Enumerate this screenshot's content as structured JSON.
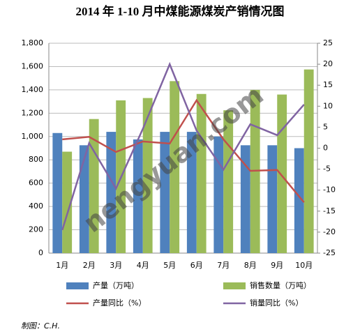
{
  "chart_data": {
    "type": "bar-line",
    "title": "2014 年 1-10 月中煤能源煤炭产销情况图",
    "categories": [
      "1月",
      "2月",
      "3月",
      "4月",
      "5月",
      "6月",
      "7月",
      "8月",
      "9月",
      "10月"
    ],
    "series": [
      {
        "name": "产量（万吨）",
        "type": "bar",
        "color": "#4f81bd",
        "values": [
          1030,
          925,
          1040,
          975,
          1040,
          1040,
          1000,
          925,
          925,
          900
        ]
      },
      {
        "name": "销售数量（万吨）",
        "type": "bar",
        "color": "#9bbb59",
        "values": [
          870,
          1150,
          1310,
          1330,
          1475,
          1365,
          1225,
          1400,
          1360,
          1575
        ]
      },
      {
        "name": "产量同比（%）",
        "type": "line",
        "axis": "y2",
        "color": "#c0504d",
        "values": [
          2.1,
          2.7,
          -0.9,
          1.6,
          1.1,
          11.4,
          2.1,
          -5.4,
          -5.2,
          -12.9
        ]
      },
      {
        "name": "销量同比（%）",
        "type": "line",
        "axis": "y2",
        "color": "#8064a2",
        "values": [
          -19.5,
          1.2,
          -9.6,
          4.6,
          20,
          4.2,
          -5.1,
          5.7,
          3.1,
          10.4
        ]
      }
    ],
    "ylim": [
      0,
      1800
    ],
    "yticks": [
      0,
      200,
      400,
      600,
      800,
      {
        "value": 1000,
        "label": "1,000"
      },
      {
        "value": 1200,
        "label": "1,200"
      },
      {
        "value": 1400,
        "label": "1,400"
      },
      {
        "value": 1600,
        "label": "1,600"
      },
      {
        "value": 1800,
        "label": "1,800"
      }
    ],
    "y2lim": [
      -25,
      25
    ],
    "y2ticks": [
      -25,
      -20,
      -15,
      -10,
      -5,
      0,
      5,
      10,
      15,
      20,
      25
    ],
    "grid": true,
    "watermark": "nengyuan.com",
    "footer": "制图：C.H."
  }
}
